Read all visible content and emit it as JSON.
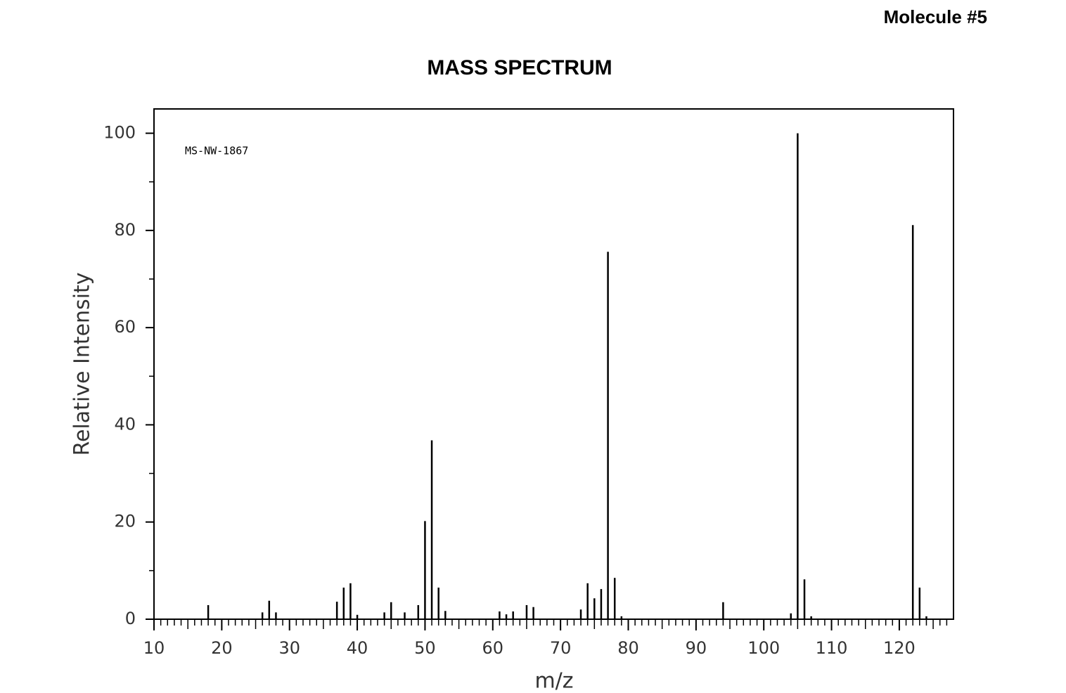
{
  "header": {
    "molecule": "Molecule #5"
  },
  "chart_data": {
    "type": "stem",
    "title": "MASS SPECTRUM",
    "annotation": "MS-NW-1867",
    "x_label": "m/z",
    "y_label": "Relative Intensity",
    "color": "#000000",
    "x": [
      18,
      26,
      27,
      28,
      37,
      38,
      39,
      40,
      44,
      45,
      47,
      49,
      50,
      51,
      52,
      53,
      61,
      62,
      63,
      65,
      66,
      73,
      74,
      75,
      76,
      77,
      78,
      79,
      94,
      104,
      105,
      106,
      107,
      122,
      123,
      124
    ],
    "values": [
      2.9,
      1.4,
      3.8,
      1.4,
      3.6,
      6.5,
      7.4,
      0.9,
      1.4,
      3.5,
      1.4,
      2.9,
      20.2,
      36.8,
      6.5,
      1.7,
      1.6,
      1.0,
      1.6,
      2.9,
      2.5,
      2.0,
      7.4,
      4.3,
      6.2,
      75.6,
      8.5,
      0.6,
      3.5,
      1.2,
      100,
      8.2,
      0.6,
      81.1,
      6.5,
      0.6
    ],
    "xlim": [
      10,
      128
    ],
    "ylim": [
      0,
      105
    ],
    "xticks": [
      10,
      20,
      30,
      40,
      50,
      60,
      70,
      80,
      90,
      100,
      110,
      120
    ],
    "yticks": [
      0,
      20,
      40,
      60,
      80,
      100
    ]
  }
}
